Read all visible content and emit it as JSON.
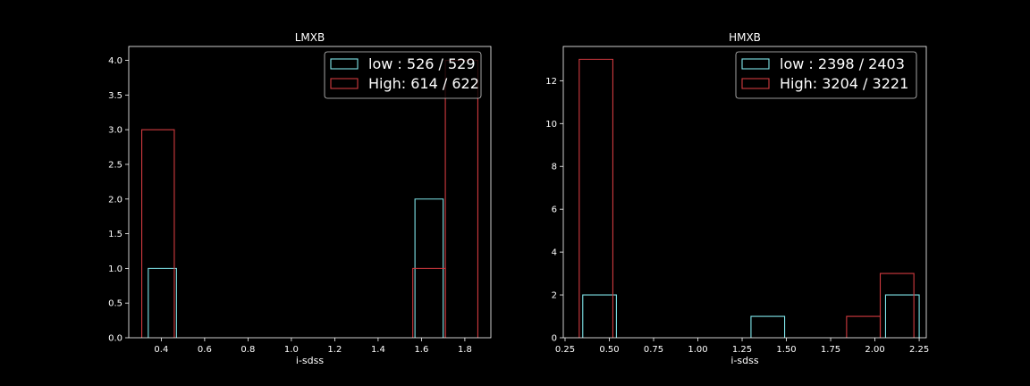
{
  "chart_data": [
    {
      "type": "bar",
      "histtype": "step",
      "title": "LMXB",
      "xlabel": "i-sdss",
      "ylabel": "",
      "xlim": [
        0.25,
        1.92
      ],
      "ylim": [
        0,
        4.2
      ],
      "xticks": [
        0.4,
        0.6,
        0.8,
        1.0,
        1.2,
        1.4,
        1.6,
        1.8
      ],
      "xtick_labels": [
        "0.4",
        "0.6",
        "0.8",
        "1.0",
        "1.2",
        "1.4",
        "1.6",
        "1.8"
      ],
      "yticks": [
        0,
        0.5,
        1.0,
        1.5,
        2.0,
        2.5,
        3.0,
        3.5,
        4.0
      ],
      "ytick_labels": [
        "0.0",
        "0.5",
        "1.0",
        "1.5",
        "2.0",
        "2.5",
        "3.0",
        "3.5",
        "4.0"
      ],
      "grid": false,
      "legend_position": "top-right",
      "series": [
        {
          "name": "low : 526 / 529",
          "color": "#7fe5ea",
          "bins": [
            {
              "x0": 0.34,
              "x1": 0.47,
              "count": 1
            },
            {
              "x0": 1.57,
              "x1": 1.7,
              "count": 2
            }
          ]
        },
        {
          "name": "High: 614 / 622",
          "color": "#d03a3f",
          "bins": [
            {
              "x0": 0.31,
              "x1": 0.46,
              "count": 3
            },
            {
              "x0": 1.56,
              "x1": 1.71,
              "count": 1
            },
            {
              "x0": 1.71,
              "x1": 1.86,
              "count": 4
            }
          ]
        }
      ]
    },
    {
      "type": "bar",
      "histtype": "step",
      "title": "HMXB",
      "xlabel": "i-sdss",
      "ylabel": "",
      "xlim": [
        0.24,
        2.29
      ],
      "ylim": [
        0,
        13.6
      ],
      "xticks": [
        0.25,
        0.5,
        0.75,
        1.0,
        1.25,
        1.5,
        1.75,
        2.0,
        2.25
      ],
      "xtick_labels": [
        "0.25",
        "0.50",
        "0.75",
        "1.00",
        "1.25",
        "1.50",
        "1.75",
        "2.00",
        "2.25"
      ],
      "yticks": [
        0,
        2,
        4,
        6,
        8,
        10,
        12
      ],
      "ytick_labels": [
        "0",
        "2",
        "4",
        "6",
        "8",
        "10",
        "12"
      ],
      "grid": false,
      "legend_position": "top-right",
      "series": [
        {
          "name": "low : 2398 / 2403",
          "color": "#7fe5ea",
          "bins": [
            {
              "x0": 0.35,
              "x1": 0.54,
              "count": 2
            },
            {
              "x0": 1.3,
              "x1": 1.49,
              "count": 1
            },
            {
              "x0": 2.06,
              "x1": 2.25,
              "count": 2
            }
          ]
        },
        {
          "name": "High: 3204 / 3221",
          "color": "#d03a3f",
          "bins": [
            {
              "x0": 0.33,
              "x1": 0.52,
              "count": 13
            },
            {
              "x0": 1.84,
              "x1": 2.03,
              "count": 1
            },
            {
              "x0": 2.03,
              "x1": 2.22,
              "count": 3
            }
          ]
        }
      ]
    }
  ]
}
